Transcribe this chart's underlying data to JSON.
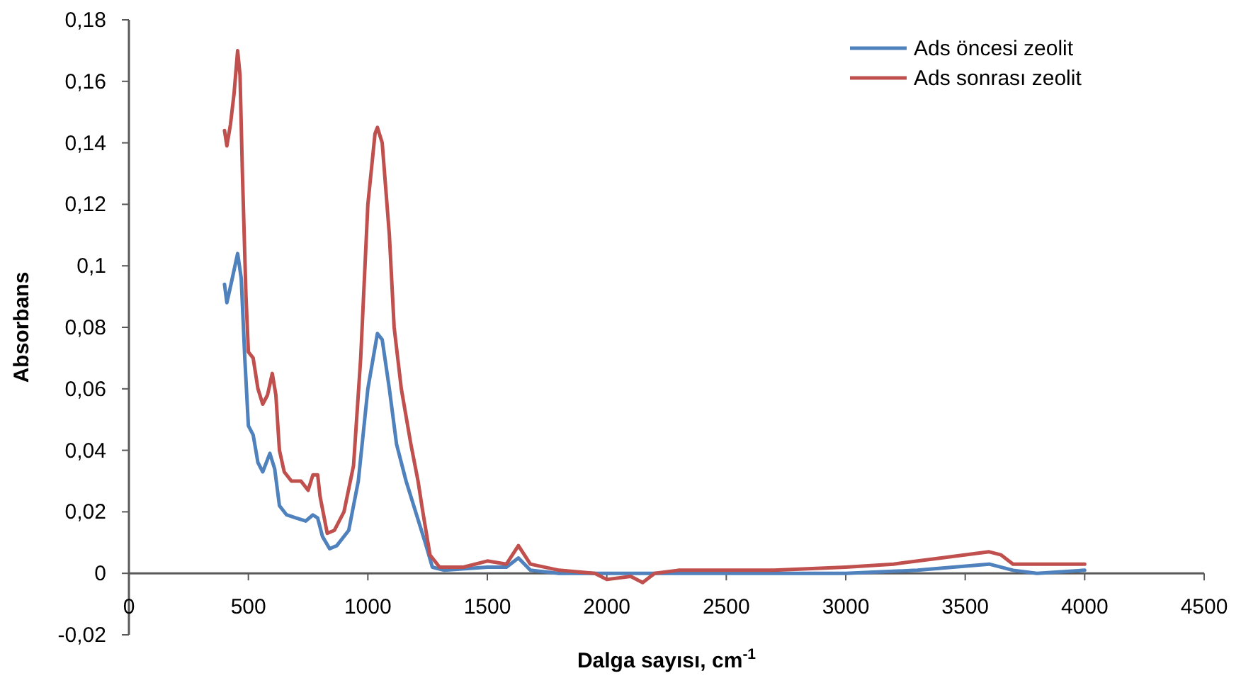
{
  "chart_data": {
    "type": "line",
    "xlabel": "Dalga sayısı, cm$^{-1}$",
    "ylabel": "Absorbans",
    "legend": "top right",
    "grid": false,
    "line_style": "solid",
    "xlim": [
      0,
      4500
    ],
    "xticks": [
      0,
      500,
      1000,
      1500,
      2000,
      2500,
      3000,
      3500,
      4000,
      4500
    ],
    "ylim": [
      -0.02,
      0.18
    ],
    "yticks": [
      {
        "value": -0.02,
        "label": "-0,02"
      },
      {
        "value": 0,
        "label": "0"
      },
      {
        "value": 0.02,
        "label": "0,02"
      },
      {
        "value": 0.04,
        "label": "0,04"
      },
      {
        "value": 0.06,
        "label": "0,06"
      },
      {
        "value": 0.08,
        "label": "0,08"
      },
      {
        "value": 0.1,
        "label": "0,1"
      },
      {
        "value": 0.12,
        "label": "0,12"
      },
      {
        "value": 0.14,
        "label": "0,14"
      },
      {
        "value": 0.16,
        "label": "0,16"
      },
      {
        "value": 0.18,
        "label": "0,18"
      }
    ],
    "series": [
      {
        "name": "Ads öncesi zeolit",
        "color": "#4f81bd",
        "x": [
          400,
          410,
          430,
          455,
          470,
          485,
          500,
          520,
          540,
          560,
          590,
          610,
          630,
          660,
          700,
          740,
          770,
          790,
          810,
          840,
          870,
          920,
          960,
          1000,
          1040,
          1060,
          1090,
          1120,
          1160,
          1200,
          1240,
          1270,
          1320,
          1500,
          1580,
          1630,
          1680,
          1800,
          2000,
          2200,
          2500,
          3000,
          3300,
          3600,
          3700,
          3800,
          4000
        ],
        "values": [
          0.094,
          0.088,
          0.095,
          0.104,
          0.096,
          0.07,
          0.048,
          0.045,
          0.036,
          0.033,
          0.039,
          0.034,
          0.022,
          0.019,
          0.018,
          0.017,
          0.019,
          0.018,
          0.012,
          0.008,
          0.009,
          0.014,
          0.03,
          0.06,
          0.078,
          0.076,
          0.06,
          0.042,
          0.03,
          0.02,
          0.01,
          0.002,
          0.001,
          0.002,
          0.002,
          0.005,
          0.001,
          0,
          0,
          0,
          0,
          0,
          0.001,
          0.003,
          0.001,
          0,
          0.001
        ]
      },
      {
        "name": "Ads sonrası zeolit",
        "color": "#c0504d",
        "x": [
          400,
          410,
          425,
          440,
          455,
          465,
          475,
          490,
          500,
          520,
          540,
          560,
          580,
          600,
          615,
          630,
          650,
          680,
          720,
          750,
          770,
          790,
          800,
          830,
          860,
          900,
          940,
          970,
          1000,
          1030,
          1040,
          1060,
          1090,
          1110,
          1140,
          1180,
          1210,
          1230,
          1260,
          1300,
          1400,
          1500,
          1580,
          1630,
          1680,
          1800,
          1950,
          2000,
          2100,
          2150,
          2200,
          2300,
          2500,
          2700,
          3000,
          3200,
          3400,
          3600,
          3650,
          3700,
          3800,
          4000
        ],
        "values": [
          0.144,
          0.139,
          0.146,
          0.156,
          0.17,
          0.162,
          0.13,
          0.09,
          0.072,
          0.07,
          0.06,
          0.055,
          0.058,
          0.065,
          0.058,
          0.04,
          0.033,
          0.03,
          0.03,
          0.027,
          0.032,
          0.032,
          0.025,
          0.013,
          0.014,
          0.02,
          0.035,
          0.07,
          0.12,
          0.143,
          0.145,
          0.14,
          0.11,
          0.08,
          0.06,
          0.042,
          0.03,
          0.02,
          0.006,
          0.002,
          0.002,
          0.004,
          0.003,
          0.009,
          0.003,
          0.001,
          0,
          -0.002,
          -0.001,
          -0.003,
          0,
          0.001,
          0.001,
          0.001,
          0.002,
          0.003,
          0.005,
          0.007,
          0.006,
          0.003,
          0.003,
          0.003
        ]
      }
    ]
  }
}
